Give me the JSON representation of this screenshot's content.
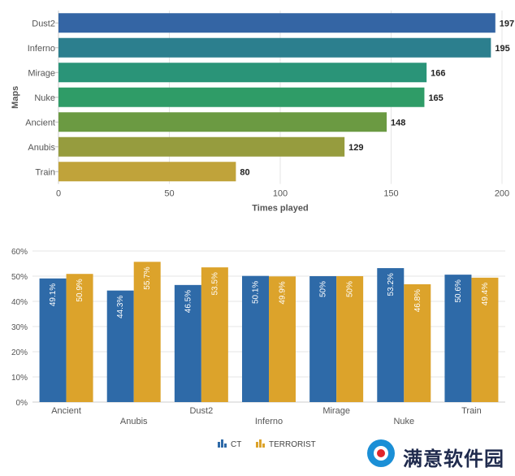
{
  "chart_data": [
    {
      "type": "bar",
      "orientation": "horizontal",
      "categories": [
        "Dust2",
        "Inferno",
        "Mirage",
        "Nuke",
        "Ancient",
        "Anubis",
        "Train"
      ],
      "values": [
        197,
        195,
        166,
        165,
        148,
        129,
        80
      ],
      "colors": [
        "#3465a4",
        "#2c7f8e",
        "#2a9478",
        "#2f9c67",
        "#6b9a42",
        "#969c3e",
        "#c0a33a"
      ],
      "xlabel": "Times played",
      "ylabel": "Maps",
      "xlim": [
        0,
        200
      ],
      "xticks": [
        0,
        50,
        100,
        150,
        200
      ],
      "grid": true
    },
    {
      "type": "bar",
      "categories": [
        "Ancient",
        "Anubis",
        "Dust2",
        "Inferno",
        "Mirage",
        "Nuke",
        "Train"
      ],
      "series": [
        {
          "name": "CT",
          "color": "#2e6aa8",
          "values": [
            49.1,
            44.3,
            46.5,
            50.1,
            50,
            53.2,
            50.6
          ],
          "labels": [
            "49.1%",
            "44.3%",
            "46.5%",
            "50.1%",
            "50%",
            "53.2%",
            "50.6%"
          ]
        },
        {
          "name": "TERRORIST",
          "color": "#dca32b",
          "values": [
            50.9,
            55.7,
            53.5,
            49.9,
            50,
            46.8,
            49.4
          ],
          "labels": [
            "50.9%",
            "55.7%",
            "53.5%",
            "49.9%",
            "50%",
            "46.8%",
            "49.4%"
          ]
        }
      ],
      "ylim": [
        0,
        60
      ],
      "yticks": [
        "0%",
        "10%",
        "20%",
        "30%",
        "40%",
        "50%",
        "60%"
      ],
      "legend": "bottom-center",
      "grid": true
    }
  ],
  "watermark": {
    "text": "满意软件园",
    "icon": "logo-icon"
  }
}
